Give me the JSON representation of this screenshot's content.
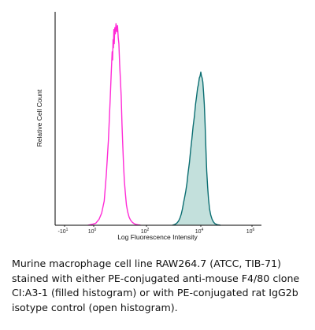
{
  "chart_data": {
    "type": "area",
    "xlabel": "Log Fluorescence Intensity",
    "ylabel": "Relative Cell Count",
    "x_scale": "log",
    "x_ticks": [
      {
        "value": -10,
        "label": "-10",
        "sup": "1"
      },
      {
        "value": 1,
        "label": "10",
        "sup": "0"
      },
      {
        "value": 100,
        "label": "10",
        "sup": "2"
      },
      {
        "value": 10000,
        "label": "10",
        "sup": "4"
      },
      {
        "value": 1000000,
        "label": "10",
        "sup": "6"
      }
    ],
    "xlim": [
      -10,
      1000000
    ],
    "ylim": [
      0,
      1
    ],
    "grid": false,
    "series": [
      {
        "role": "isotype control (open histogram)",
        "style": "outline",
        "color": "#ff2bd6",
        "x": [
          0.6,
          0.9,
          1.2,
          1.6,
          2.0,
          2.5,
          3.0,
          3.6,
          4.2,
          4.6,
          5.0,
          5.2,
          5.4,
          5.6,
          5.8,
          6.0,
          6.3,
          6.6,
          7.0,
          7.5,
          8.0,
          8.5,
          9.0,
          9.6,
          10.3,
          11.0,
          11.8,
          12.6,
          13.5,
          14.5,
          15.8,
          17.4,
          19.5,
          22.0,
          25.0,
          29.0,
          34.0,
          40.0,
          48.0,
          55.0,
          60.0
        ],
        "y": [
          0.0,
          0.005,
          0.01,
          0.03,
          0.06,
          0.12,
          0.25,
          0.42,
          0.62,
          0.75,
          0.86,
          0.82,
          0.92,
          0.88,
          0.97,
          0.9,
          0.98,
          0.95,
          1.0,
          0.96,
          0.99,
          0.93,
          0.9,
          0.8,
          0.72,
          0.64,
          0.5,
          0.4,
          0.3,
          0.22,
          0.16,
          0.1,
          0.065,
          0.04,
          0.025,
          0.015,
          0.008,
          0.004,
          0.002,
          0.001,
          0.0
        ]
      },
      {
        "role": "PE-conjugated anti-mouse F4/80 (filled histogram)",
        "style": "filled",
        "color": "#0b6e72",
        "fill": "#c3e0dc",
        "x": [
          900,
          1100,
          1300,
          1500,
          1700,
          1900,
          2100,
          2300,
          2550,
          2800,
          3100,
          3400,
          3800,
          4200,
          4700,
          5200,
          5800,
          6400,
          7000,
          7600,
          8200,
          8800,
          9400,
          10000,
          10600,
          11300,
          12000,
          12800,
          13700,
          14700,
          15800,
          17000,
          18500,
          20000,
          22000,
          24500,
          27500,
          31000,
          35000,
          40000,
          46000,
          52000,
          58000
        ],
        "y": [
          0.0,
          0.004,
          0.01,
          0.02,
          0.035,
          0.055,
          0.08,
          0.11,
          0.14,
          0.17,
          0.21,
          0.26,
          0.31,
          0.37,
          0.43,
          0.49,
          0.54,
          0.6,
          0.64,
          0.68,
          0.7,
          0.73,
          0.74,
          0.76,
          0.74,
          0.73,
          0.71,
          0.66,
          0.6,
          0.5,
          0.38,
          0.27,
          0.19,
          0.13,
          0.08,
          0.05,
          0.03,
          0.017,
          0.009,
          0.005,
          0.002,
          0.001,
          0.0
        ]
      }
    ]
  },
  "caption": "Murine macrophage cell line RAW264.7 (ATCC, TIB-71) stained with either PE-conjugated anti-mouse F4/80 clone CI:A3-1 (filled histogram) or with PE-conjugated rat IgG2b isotype control (open histogram)."
}
